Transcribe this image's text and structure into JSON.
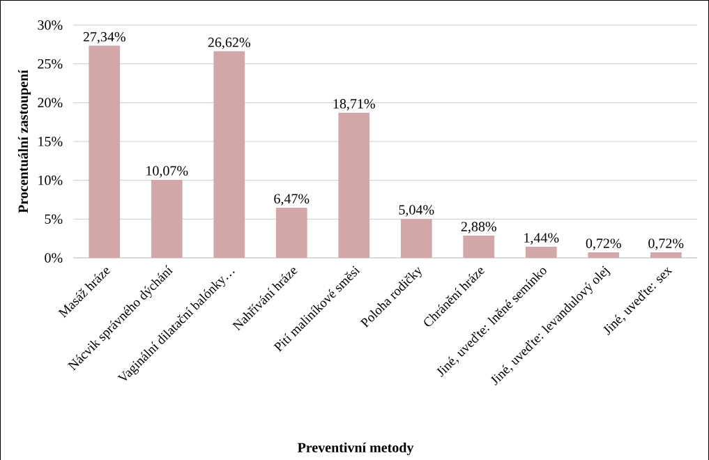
{
  "chart_data": {
    "type": "bar",
    "xlabel": "Preventivní metody",
    "ylabel": "Procentuální zastoupení",
    "categories": [
      "Masáž hráze",
      "Nácvik správného dýchání",
      "Vaginální dilatační balónky…",
      "Nahřívání hráze",
      "Pití maliníkové směsi",
      "Poloha rodičky",
      "Chránění hráze",
      "Jiné, uveďte: lněné semínko",
      "Jiné, uveďte: levandulový olej",
      "Jiné, uveďte: sex"
    ],
    "values": [
      27.34,
      10.07,
      26.62,
      6.47,
      18.71,
      5.04,
      2.88,
      1.44,
      0.72,
      0.72
    ],
    "value_labels": [
      "27,34%",
      "10,07%",
      "26,62%",
      "6,47%",
      "18,71%",
      "5,04%",
      "2,88%",
      "1,44%",
      "0,72%",
      "0,72%"
    ],
    "color": "#d1a7a7",
    "ylim": [
      0,
      30
    ],
    "yticks": [
      {
        "value": 0,
        "label": "0%"
      },
      {
        "value": 5,
        "label": "5%"
      },
      {
        "value": 10,
        "label": "10%"
      },
      {
        "value": 15,
        "label": "15%"
      },
      {
        "value": 20,
        "label": "20%"
      },
      {
        "value": 25,
        "label": "25%"
      },
      {
        "value": 30,
        "label": "30%"
      }
    ],
    "grid": "y"
  }
}
